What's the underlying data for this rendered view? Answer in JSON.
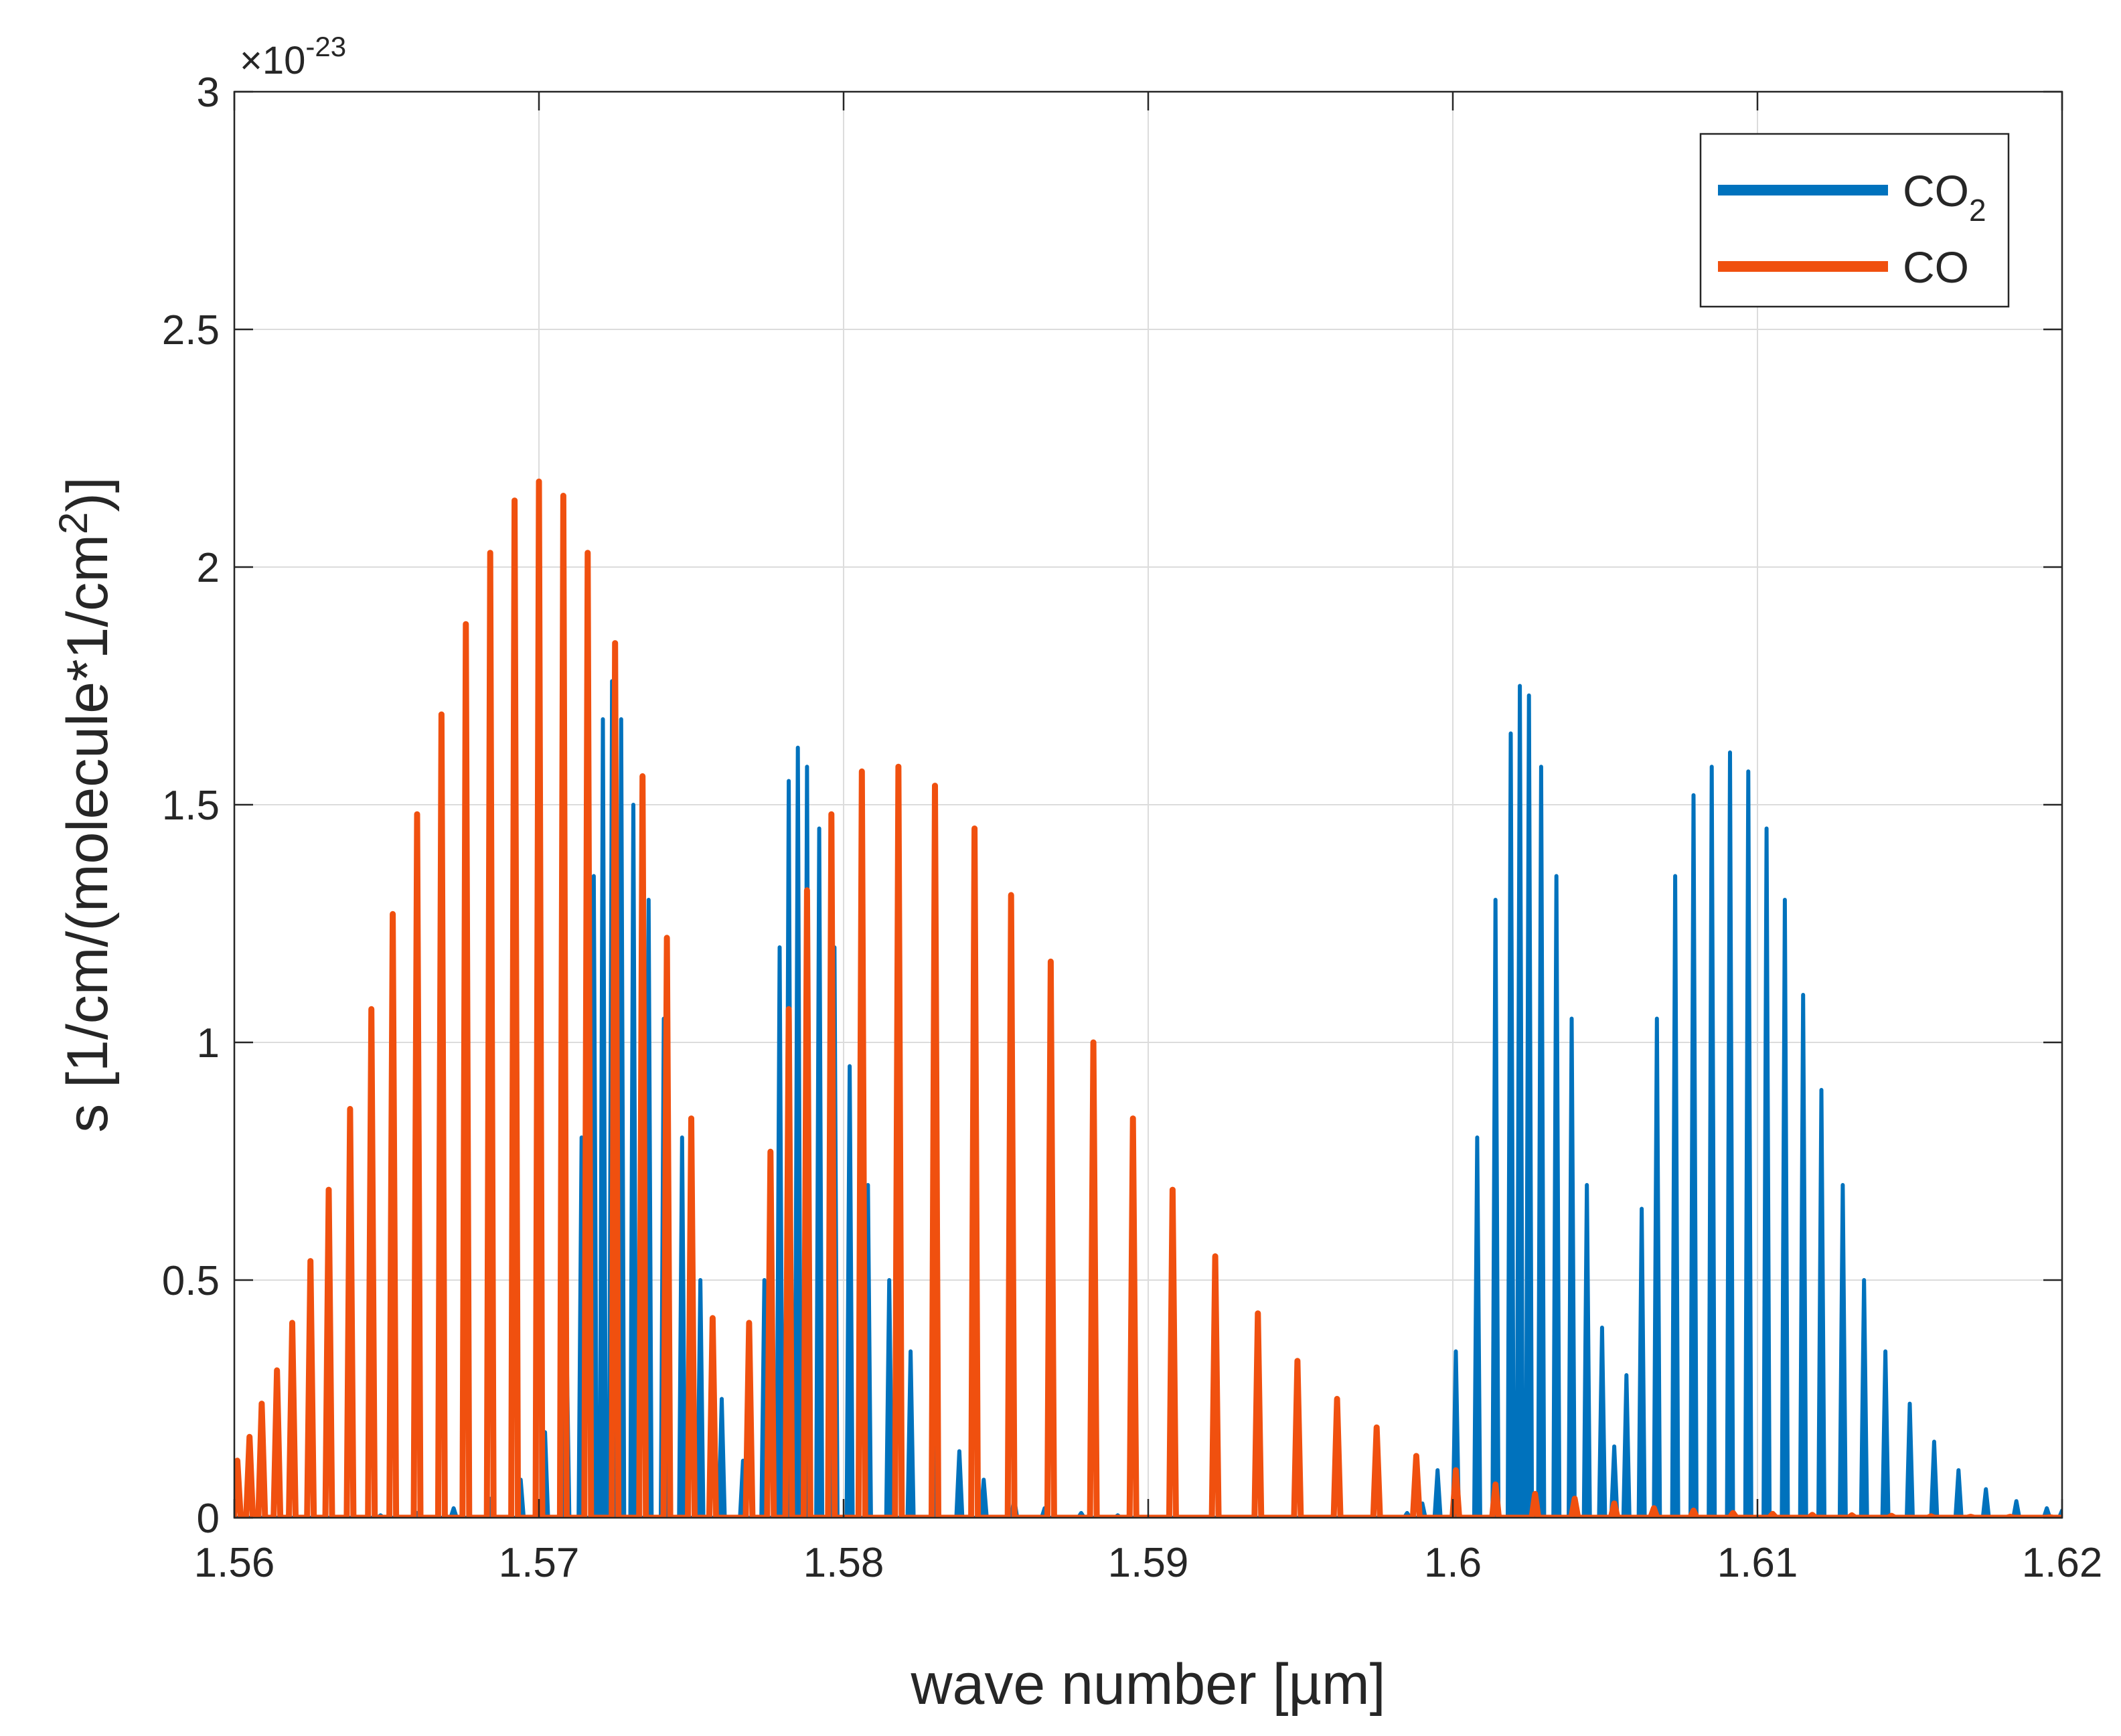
{
  "chart_data": {
    "type": "line",
    "title": "",
    "xlabel": "wave number [µm]",
    "ylabel_prefix": "s [1/cm/(molecule*1/cm",
    "ylabel_sup": "2",
    "ylabel_suffix": ")]",
    "exponent_label": "×10",
    "exponent_power": "-23",
    "xlim": [
      1.56,
      1.62
    ],
    "ylim": [
      0,
      3
    ],
    "x_ticks": [
      1.56,
      1.57,
      1.58,
      1.59,
      1.6,
      1.61,
      1.62
    ],
    "x_tick_labels": [
      "1.56",
      "1.57",
      "1.58",
      "1.59",
      "1.6",
      "1.61",
      "1.62"
    ],
    "y_ticks": [
      0,
      0.5,
      1,
      1.5,
      2,
      2.5,
      3
    ],
    "y_tick_labels": [
      "0",
      "0.5",
      "1",
      "1.5",
      "2",
      "2.5",
      "3"
    ],
    "grid": true,
    "legend_position": "top-right",
    "series": [
      {
        "name": "CO2",
        "legend_main": "CO",
        "legend_sub": "2",
        "color": "#0072BD",
        "peaks": [
          [
            1.5635,
            0.0
          ],
          [
            1.5648,
            0.005
          ],
          [
            1.566,
            0.01
          ],
          [
            1.5672,
            0.02
          ],
          [
            1.5684,
            0.04
          ],
          [
            1.5694,
            0.08
          ],
          [
            1.5702,
            0.18
          ],
          [
            1.5709,
            0.4
          ],
          [
            1.5714,
            0.8
          ],
          [
            1.5718,
            1.35
          ],
          [
            1.5721,
            1.68
          ],
          [
            1.5724,
            1.76
          ],
          [
            1.5727,
            1.68
          ],
          [
            1.5731,
            1.5
          ],
          [
            1.5736,
            1.3
          ],
          [
            1.5741,
            1.05
          ],
          [
            1.5747,
            0.8
          ],
          [
            1.5753,
            0.5
          ],
          [
            1.576,
            0.25
          ],
          [
            1.5767,
            0.12
          ],
          [
            1.5774,
            0.5
          ],
          [
            1.5779,
            1.2
          ],
          [
            1.5782,
            1.55
          ],
          [
            1.5785,
            1.62
          ],
          [
            1.5788,
            1.58
          ],
          [
            1.5792,
            1.45
          ],
          [
            1.5797,
            1.2
          ],
          [
            1.5802,
            0.95
          ],
          [
            1.5808,
            0.7
          ],
          [
            1.5815,
            0.5
          ],
          [
            1.5822,
            0.35
          ],
          [
            1.583,
            0.22
          ],
          [
            1.5838,
            0.14
          ],
          [
            1.5846,
            0.08
          ],
          [
            1.5856,
            0.04
          ],
          [
            1.5866,
            0.02
          ],
          [
            1.5878,
            0.01
          ],
          [
            1.589,
            0.005
          ],
          [
            1.5985,
            0.01
          ],
          [
            1.599,
            0.03
          ],
          [
            1.5995,
            0.1
          ],
          [
            1.6001,
            0.35
          ],
          [
            1.6008,
            0.8
          ],
          [
            1.6014,
            1.3
          ],
          [
            1.6019,
            1.65
          ],
          [
            1.6022,
            1.75
          ],
          [
            1.6025,
            1.73
          ],
          [
            1.6029,
            1.58
          ],
          [
            1.6034,
            1.35
          ],
          [
            1.6039,
            1.05
          ],
          [
            1.6044,
            0.7
          ],
          [
            1.6049,
            0.4
          ],
          [
            1.6053,
            0.15
          ],
          [
            1.6057,
            0.3
          ],
          [
            1.6062,
            0.65
          ],
          [
            1.6067,
            1.05
          ],
          [
            1.6073,
            1.35
          ],
          [
            1.6079,
            1.52
          ],
          [
            1.6085,
            1.58
          ],
          [
            1.6091,
            1.61
          ],
          [
            1.6097,
            1.57
          ],
          [
            1.6103,
            1.45
          ],
          [
            1.6109,
            1.3
          ],
          [
            1.6115,
            1.1
          ],
          [
            1.6121,
            0.9
          ],
          [
            1.6128,
            0.7
          ],
          [
            1.6135,
            0.5
          ],
          [
            1.6142,
            0.35
          ],
          [
            1.615,
            0.24
          ],
          [
            1.6158,
            0.16
          ],
          [
            1.6166,
            0.1
          ],
          [
            1.6175,
            0.06
          ],
          [
            1.6185,
            0.035
          ],
          [
            1.6195,
            0.02
          ],
          [
            1.62,
            0.015
          ]
        ]
      },
      {
        "name": "CO",
        "legend_main": "CO",
        "legend_sub": "",
        "color": "#F0500F",
        "peaks": [
          [
            1.5601,
            0.12
          ],
          [
            1.5605,
            0.17
          ],
          [
            1.5609,
            0.24
          ],
          [
            1.5614,
            0.31
          ],
          [
            1.5619,
            0.41
          ],
          [
            1.5625,
            0.54
          ],
          [
            1.5631,
            0.69
          ],
          [
            1.5638,
            0.86
          ],
          [
            1.5645,
            1.07
          ],
          [
            1.5652,
            1.27
          ],
          [
            1.566,
            1.48
          ],
          [
            1.5668,
            1.69
          ],
          [
            1.5676,
            1.88
          ],
          [
            1.5684,
            2.03
          ],
          [
            1.5692,
            2.14
          ],
          [
            1.57,
            2.18
          ],
          [
            1.5708,
            2.15
          ],
          [
            1.5716,
            2.03
          ],
          [
            1.5725,
            1.84
          ],
          [
            1.5734,
            1.56
          ],
          [
            1.5742,
            1.22
          ],
          [
            1.575,
            0.84
          ],
          [
            1.5757,
            0.42
          ],
          [
            1.5769,
            0.41
          ],
          [
            1.5776,
            0.77
          ],
          [
            1.5782,
            1.07
          ],
          [
            1.5788,
            1.32
          ],
          [
            1.5796,
            1.48
          ],
          [
            1.5806,
            1.57
          ],
          [
            1.5818,
            1.58
          ],
          [
            1.583,
            1.54
          ],
          [
            1.5843,
            1.45
          ],
          [
            1.5855,
            1.31
          ],
          [
            1.5868,
            1.17
          ],
          [
            1.5882,
            1.0
          ],
          [
            1.5895,
            0.84
          ],
          [
            1.5908,
            0.69
          ],
          [
            1.5922,
            0.55
          ],
          [
            1.5936,
            0.43
          ],
          [
            1.5949,
            0.33
          ],
          [
            1.5962,
            0.25
          ],
          [
            1.5975,
            0.19
          ],
          [
            1.5988,
            0.13
          ],
          [
            1.6001,
            0.1
          ],
          [
            1.6014,
            0.07
          ],
          [
            1.6027,
            0.05
          ],
          [
            1.604,
            0.04
          ],
          [
            1.6053,
            0.03
          ],
          [
            1.6066,
            0.02
          ],
          [
            1.6079,
            0.015
          ],
          [
            1.6092,
            0.01
          ],
          [
            1.6105,
            0.008
          ],
          [
            1.6118,
            0.006
          ],
          [
            1.6131,
            0.005
          ],
          [
            1.6144,
            0.004
          ],
          [
            1.6157,
            0.003
          ],
          [
            1.617,
            0.002
          ],
          [
            1.6183,
            0.002
          ],
          [
            1.6196,
            0.001
          ]
        ]
      }
    ]
  }
}
